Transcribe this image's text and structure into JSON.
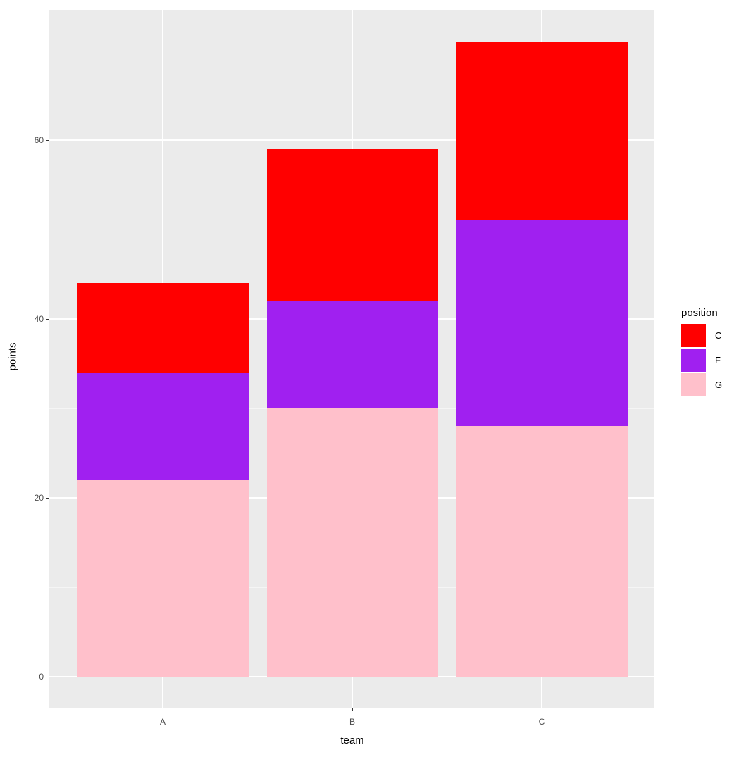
{
  "chart_data": {
    "type": "bar",
    "stacked": true,
    "title": "",
    "xlabel": "team",
    "ylabel": "points",
    "categories": [
      "A",
      "B",
      "C"
    ],
    "series": [
      {
        "name": "G",
        "color": "#FFC0CB",
        "values": [
          22,
          30,
          28
        ]
      },
      {
        "name": "F",
        "color": "#A020F0",
        "values": [
          12,
          12,
          23
        ]
      },
      {
        "name": "C",
        "color": "#FF0000",
        "values": [
          10,
          17,
          20
        ]
      }
    ],
    "totals": [
      44,
      59,
      71
    ],
    "ylim": [
      -3.5,
      74.6
    ],
    "yticks": [
      0,
      20,
      40,
      60
    ],
    "grid": true,
    "legend": {
      "title": "position",
      "position": "right",
      "entries": [
        "C",
        "F",
        "G"
      ]
    }
  },
  "axes": {
    "xlabel": "team",
    "ylabel": "points",
    "yticks": [
      "0",
      "20",
      "40",
      "60"
    ],
    "xticks": [
      "A",
      "B",
      "C"
    ]
  },
  "legend": {
    "title": "position",
    "items": [
      {
        "label": "C",
        "color": "#FF0000"
      },
      {
        "label": "F",
        "color": "#A020F0"
      },
      {
        "label": "G",
        "color": "#FFC0CB"
      }
    ]
  }
}
